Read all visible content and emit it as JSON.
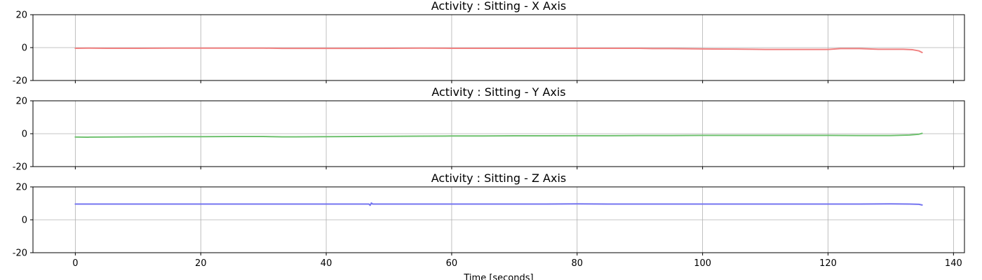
{
  "chart_data": {
    "type": "line",
    "xlabel": "Time [seconds]",
    "xlim": [
      -6.75,
      141.75
    ],
    "x_ticks": [
      0,
      20,
      40,
      60,
      80,
      100,
      120,
      140
    ],
    "grid": true,
    "panels": [
      {
        "title": "Activity : Sitting - X Axis",
        "ylim": [
          -20,
          20
        ],
        "y_ticks": [
          -20,
          0,
          20
        ],
        "series": [
          {
            "color": "#f08080",
            "points": [
              [
                0,
                -0.4
              ],
              [
                2,
                -0.3
              ],
              [
                5,
                -0.4
              ],
              [
                10,
                -0.4
              ],
              [
                15,
                -0.3
              ],
              [
                20,
                -0.3
              ],
              [
                25,
                -0.3
              ],
              [
                30,
                -0.3
              ],
              [
                33,
                -0.5
              ],
              [
                35,
                -0.5
              ],
              [
                40,
                -0.5
              ],
              [
                45,
                -0.5
              ],
              [
                50,
                -0.4
              ],
              [
                55,
                -0.3
              ],
              [
                60,
                -0.4
              ],
              [
                65,
                -0.4
              ],
              [
                70,
                -0.4
              ],
              [
                75,
                -0.4
              ],
              [
                80,
                -0.4
              ],
              [
                85,
                -0.4
              ],
              [
                90,
                -0.4
              ],
              [
                92,
                -0.6
              ],
              [
                95,
                -0.6
              ],
              [
                100,
                -0.8
              ],
              [
                105,
                -0.9
              ],
              [
                108,
                -1.0
              ],
              [
                110,
                -1.1
              ],
              [
                115,
                -1.1
              ],
              [
                120,
                -1.1
              ],
              [
                122,
                -0.6
              ],
              [
                125,
                -0.6
              ],
              [
                128,
                -1.0
              ],
              [
                130,
                -1.0
              ],
              [
                132,
                -1.0
              ],
              [
                133.5,
                -1.3
              ],
              [
                134.5,
                -2.0
              ],
              [
                135,
                -3.0
              ]
            ]
          }
        ]
      },
      {
        "title": "Activity : Sitting - Y Axis",
        "ylim": [
          -20,
          20
        ],
        "y_ticks": [
          -20,
          0,
          20
        ],
        "series": [
          {
            "color": "#6fc16f",
            "points": [
              [
                0,
                -2.0
              ],
              [
                2,
                -2.1
              ],
              [
                5,
                -2.0
              ],
              [
                10,
                -1.9
              ],
              [
                15,
                -1.8
              ],
              [
                20,
                -1.8
              ],
              [
                25,
                -1.7
              ],
              [
                30,
                -1.7
              ],
              [
                33,
                -1.9
              ],
              [
                35,
                -1.9
              ],
              [
                40,
                -1.8
              ],
              [
                45,
                -1.7
              ],
              [
                50,
                -1.6
              ],
              [
                55,
                -1.5
              ],
              [
                60,
                -1.4
              ],
              [
                65,
                -1.4
              ],
              [
                70,
                -1.3
              ],
              [
                75,
                -1.3
              ],
              [
                80,
                -1.2
              ],
              [
                85,
                -1.2
              ],
              [
                90,
                -1.1
              ],
              [
                95,
                -1.1
              ],
              [
                100,
                -1.0
              ],
              [
                105,
                -1.0
              ],
              [
                110,
                -1.0
              ],
              [
                115,
                -1.0
              ],
              [
                120,
                -1.0
              ],
              [
                125,
                -1.1
              ],
              [
                130,
                -1.1
              ],
              [
                133,
                -0.8
              ],
              [
                134.5,
                -0.3
              ],
              [
                135,
                0.2
              ]
            ]
          }
        ]
      },
      {
        "title": "Activity : Sitting - Z Axis",
        "ylim": [
          -20,
          20
        ],
        "y_ticks": [
          -20,
          0,
          20
        ],
        "series": [
          {
            "color": "#7474f0",
            "points": [
              [
                0,
                9.6
              ],
              [
                5,
                9.6
              ],
              [
                10,
                9.6
              ],
              [
                15,
                9.6
              ],
              [
                20,
                9.6
              ],
              [
                25,
                9.6
              ],
              [
                30,
                9.6
              ],
              [
                35,
                9.6
              ],
              [
                40,
                9.6
              ],
              [
                45,
                9.6
              ],
              [
                46.8,
                9.6
              ],
              [
                47,
                8.8
              ],
              [
                47.2,
                10.2
              ],
              [
                47.4,
                9.6
              ],
              [
                50,
                9.6
              ],
              [
                55,
                9.6
              ],
              [
                60,
                9.6
              ],
              [
                65,
                9.6
              ],
              [
                70,
                9.6
              ],
              [
                75,
                9.6
              ],
              [
                80,
                9.7
              ],
              [
                85,
                9.6
              ],
              [
                90,
                9.6
              ],
              [
                95,
                9.6
              ],
              [
                100,
                9.6
              ],
              [
                105,
                9.6
              ],
              [
                110,
                9.6
              ],
              [
                115,
                9.6
              ],
              [
                120,
                9.6
              ],
              [
                125,
                9.6
              ],
              [
                130,
                9.7
              ],
              [
                133,
                9.6
              ],
              [
                134.5,
                9.4
              ],
              [
                135,
                9.0
              ]
            ]
          }
        ]
      }
    ]
  }
}
